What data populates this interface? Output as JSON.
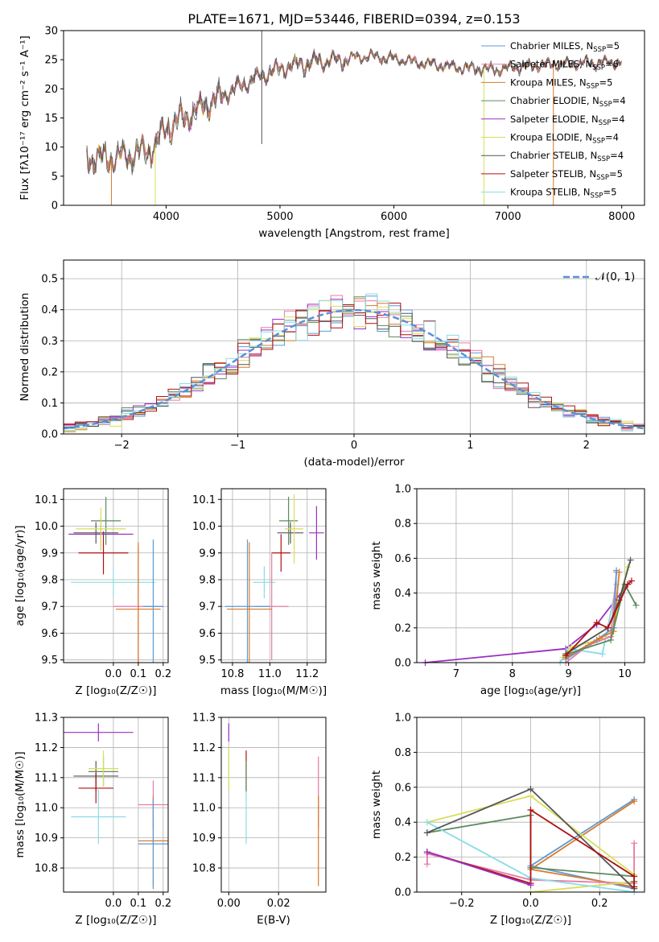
{
  "title": "PLATE=1671, MJD=53446, FIBERID=0394, z=0.153",
  "colors": {
    "chabrier_miles": "#5a9bd4",
    "salpeter_miles": "#e87aa8",
    "kroupa_miles": "#d97a2b",
    "chabrier_elodie": "#5c8a5c",
    "salpeter_elodie": "#9b30c0",
    "kroupa_elodie": "#d8de5a",
    "chabrier_stelib": "#555555",
    "salpeter_stelib": "#b01010",
    "kroupa_stelib": "#8adce6",
    "gaussian": "#5b8fd6"
  },
  "chart_data": [
    {
      "id": "spectrum",
      "type": "line",
      "xlabel": "wavelength [Angstrom, rest frame]",
      "ylabel": "Flux [fλ10⁻¹⁷ erg cm⁻² s⁻¹ A⁻¹]",
      "xlim": [
        3100,
        8200
      ],
      "ylim": [
        0,
        30
      ],
      "xticks": [
        "4000",
        "5000",
        "6000",
        "7000",
        "8000"
      ],
      "yticks": [
        "0",
        "5",
        "10",
        "15",
        "20",
        "25",
        "30"
      ],
      "grid": false,
      "legend_position": "upper right",
      "legend": [
        {
          "name": "Chabrier MILES, N",
          "sub": "SSP",
          "suffix": "=5",
          "color_key": "chabrier_miles"
        },
        {
          "name": "Salpeter MILES, N",
          "sub": "SSP",
          "suffix": "=6",
          "color_key": "salpeter_miles"
        },
        {
          "name": "Kroupa MILES, N",
          "sub": "SSP",
          "suffix": "=5",
          "color_key": "kroupa_miles"
        },
        {
          "name": "Chabrier ELODIE, N",
          "sub": "SSP",
          "suffix": "=4",
          "color_key": "chabrier_elodie"
        },
        {
          "name": "Salpeter ELODIE, N",
          "sub": "SSP",
          "suffix": "=4",
          "color_key": "salpeter_elodie"
        },
        {
          "name": "Kroupa ELODIE, N",
          "sub": "SSP",
          "suffix": "=4",
          "color_key": "kroupa_elodie"
        },
        {
          "name": "Chabrier STELIB, N",
          "sub": "SSP",
          "suffix": "=4",
          "color_key": "chabrier_stelib"
        },
        {
          "name": "Salpeter STELIB, N",
          "sub": "SSP",
          "suffix": "=5",
          "color_key": "salpeter_stelib"
        },
        {
          "name": "Kroupa STELIB, N",
          "sub": "SSP",
          "suffix": "=5",
          "color_key": "kroupa_stelib"
        }
      ],
      "continuum": [
        [
          3300,
          8.3
        ],
        [
          3500,
          8.0
        ],
        [
          3700,
          8.6
        ],
        [
          3900,
          10.0
        ],
        [
          4000,
          13.5
        ],
        [
          4200,
          15.5
        ],
        [
          4500,
          19.0
        ],
        [
          4800,
          22.0
        ],
        [
          5000,
          23.5
        ],
        [
          5200,
          24.3
        ],
        [
          5500,
          25.0
        ],
        [
          5800,
          25.6
        ],
        [
          6000,
          25.2
        ],
        [
          6300,
          24.3
        ],
        [
          6600,
          23.6
        ],
        [
          6900,
          23.3
        ],
        [
          7100,
          23.8
        ],
        [
          7400,
          24.2
        ],
        [
          7700,
          24.4
        ],
        [
          8000,
          24.6
        ]
      ],
      "spikes": [
        {
          "x": 3520,
          "y_min": 0,
          "color_key": "kroupa_miles"
        },
        {
          "x": 3905,
          "y_min": 0,
          "color_key": "kroupa_elodie"
        },
        {
          "x": 4840,
          "y_min": 10.5,
          "y_max": 30,
          "color_key": "chabrier_stelib"
        },
        {
          "x": 6790,
          "y_min": 0,
          "color_key": "kroupa_elodie"
        },
        {
          "x": 7400,
          "y_min": 0,
          "color_key": "kroupa_miles"
        }
      ]
    },
    {
      "id": "residuals",
      "type": "histogram",
      "xlabel": "(data-model)/error",
      "ylabel": "Normed distribution",
      "xlim": [
        -2.5,
        2.5
      ],
      "ylim": [
        0,
        0.56
      ],
      "xticks": [
        "−2",
        "−1",
        "0",
        "1",
        "2"
      ],
      "yticks": [
        "0.0",
        "0.1",
        "0.2",
        "0.3",
        "0.4",
        "0.5"
      ],
      "grid": true,
      "legend_position": "upper right",
      "gaussian_label": "𝒩(0, 1)",
      "bin_width": 0.1
    },
    {
      "id": "age_vs_Z",
      "type": "scatter",
      "xlabel": "Z [log₁₀(Z/Z☉)]",
      "ylabel": "age  [log₁₀(age/yr)]",
      "xlim": [
        -0.2,
        0.22
      ],
      "ylim": [
        9.49,
        10.14
      ],
      "xticks": [
        "0.0",
        "0.1",
        "0.2"
      ],
      "yticks": [
        "9.5",
        "9.6",
        "9.7",
        "9.8",
        "9.9",
        "10.0",
        "10.1"
      ],
      "grid": true,
      "points": [
        {
          "x": 0.0,
          "xerr": 0.17,
          "y": 9.79,
          "yerr": 0.05,
          "color_key": "kroupa_stelib"
        },
        {
          "x": -0.04,
          "xerr": 0.1,
          "y": 9.9,
          "yerr": 0.08,
          "color_key": "salpeter_stelib"
        },
        {
          "x": -0.07,
          "xerr": 0.09,
          "y": 9.975,
          "yerr": 0.04,
          "color_key": "chabrier_stelib"
        },
        {
          "x": -0.03,
          "xerr": 0.06,
          "y": 10.02,
          "yerr": 0.09,
          "color_key": "chabrier_elodie"
        },
        {
          "x": -0.05,
          "xerr": 0.13,
          "y": 9.97,
          "yerr": 0.06,
          "color_key": "salpeter_elodie"
        },
        {
          "x": -0.05,
          "xerr": 0.1,
          "y": 9.99,
          "yerr": 0.08,
          "color_key": "kroupa_elodie"
        },
        {
          "x": 0.1,
          "xerr": 0.1,
          "y": 9.7,
          "yerr": 0.22,
          "color_key": "salpeter_miles"
        },
        {
          "x": 0.16,
          "xerr": 0.04,
          "y": 9.7,
          "yerr": 0.25,
          "color_key": "chabrier_miles"
        },
        {
          "x": 0.1,
          "xerr": 0.09,
          "y": 9.69,
          "yerr": 0.25,
          "color_key": "kroupa_miles"
        }
      ]
    },
    {
      "id": "age_vs_mass",
      "type": "scatter",
      "xlabel": "mass [log₁₀(M/M☉)]",
      "ylabel": "",
      "xlim": [
        10.74,
        11.3
      ],
      "ylim": [
        9.49,
        10.14
      ],
      "xticks": [
        "10.8",
        "11.0",
        "11.2"
      ],
      "yticks": [
        "9.5",
        "9.6",
        "9.7",
        "9.8",
        "9.9",
        "10.0",
        "10.1"
      ],
      "grid": true,
      "points": [
        {
          "x": 10.97,
          "xerr": 0.06,
          "y": 9.79,
          "yerr": 0.06,
          "color_key": "kroupa_stelib"
        },
        {
          "x": 11.06,
          "xerr": 0.05,
          "y": 9.9,
          "yerr": 0.07,
          "color_key": "salpeter_stelib"
        },
        {
          "x": 11.11,
          "xerr": 0.07,
          "y": 9.975,
          "yerr": 0.04,
          "color_key": "chabrier_stelib"
        },
        {
          "x": 11.1,
          "xerr": 0.05,
          "y": 10.02,
          "yerr": 0.09,
          "color_key": "chabrier_elodie"
        },
        {
          "x": 11.25,
          "xerr": 0.04,
          "y": 9.975,
          "yerr": 0.1,
          "color_key": "salpeter_elodie"
        },
        {
          "x": 11.13,
          "xerr": 0.05,
          "y": 9.99,
          "yerr": 0.13,
          "color_key": "kroupa_elodie"
        },
        {
          "x": 11.01,
          "xerr": 0.09,
          "y": 9.7,
          "yerr": 0.2,
          "color_key": "salpeter_miles"
        },
        {
          "x": 10.88,
          "xerr": 0.12,
          "y": 9.7,
          "yerr": 0.25,
          "color_key": "chabrier_miles"
        },
        {
          "x": 10.89,
          "xerr": 0.12,
          "y": 9.69,
          "yerr": 0.25,
          "color_key": "kroupa_miles"
        }
      ]
    },
    {
      "id": "weight_vs_age",
      "type": "line",
      "xlabel": "age  [log₁₀(age/yr)]",
      "ylabel": "mass weight",
      "xlim": [
        6.3,
        10.35
      ],
      "ylim": [
        0,
        1.0
      ],
      "xticks": [
        "7",
        "8",
        "9",
        "10"
      ],
      "yticks": [
        "0.0",
        "0.2",
        "0.4",
        "0.6",
        "0.8",
        "1.0"
      ],
      "grid": true,
      "series": [
        {
          "color_key": "salpeter_elodie",
          "points": [
            [
              6.45,
              0.0
            ],
            [
              8.95,
              0.08
            ],
            [
              9.5,
              0.22
            ],
            [
              10.05,
              0.45
            ]
          ]
        },
        {
          "color_key": "kroupa_stelib",
          "points": [
            [
              8.85,
              0.0
            ],
            [
              9.0,
              0.08
            ],
            [
              9.6,
              0.05
            ],
            [
              9.85,
              0.45
            ]
          ]
        },
        {
          "color_key": "kroupa_elodie",
          "points": [
            [
              8.9,
              0.03
            ],
            [
              9.05,
              0.09
            ],
            [
              9.75,
              0.15
            ],
            [
              10.05,
              0.55
            ]
          ]
        },
        {
          "color_key": "salpeter_miles",
          "points": [
            [
              8.95,
              0.0
            ],
            [
              9.35,
              0.1
            ],
            [
              9.75,
              0.15
            ],
            [
              9.85,
              0.52
            ]
          ]
        },
        {
          "color_key": "chabrier_miles",
          "points": [
            [
              8.95,
              0.02
            ],
            [
              9.5,
              0.13
            ],
            [
              9.8,
              0.2
            ],
            [
              9.85,
              0.53
            ]
          ]
        },
        {
          "color_key": "kroupa_miles",
          "points": [
            [
              8.95,
              0.03
            ],
            [
              9.55,
              0.14
            ],
            [
              9.8,
              0.18
            ],
            [
              9.9,
              0.52
            ]
          ]
        },
        {
          "color_key": "chabrier_elodie",
          "points": [
            [
              8.98,
              0.05
            ],
            [
              9.75,
              0.13
            ],
            [
              10.0,
              0.45
            ],
            [
              10.2,
              0.33
            ]
          ]
        },
        {
          "color_key": "chabrier_stelib",
          "points": [
            [
              8.95,
              0.05
            ],
            [
              9.7,
              0.2
            ],
            [
              9.9,
              0.36
            ],
            [
              10.1,
              0.59
            ]
          ]
        },
        {
          "color_key": "salpeter_stelib",
          "points": [
            [
              8.95,
              0.04
            ],
            [
              9.5,
              0.23
            ],
            [
              9.7,
              0.2
            ],
            [
              10.05,
              0.45
            ],
            [
              10.12,
              0.47
            ]
          ]
        }
      ]
    },
    {
      "id": "mass_vs_Z",
      "type": "scatter",
      "xlabel": "Z [log₁₀(Z/Z☉)]",
      "ylabel": "mass [log₁₀(M/M☉)]",
      "xlim": [
        -0.2,
        0.22
      ],
      "ylim": [
        10.72,
        11.3
      ],
      "xticks": [
        "0.0",
        "0.1",
        "0.2"
      ],
      "yticks": [
        "10.8",
        "10.9",
        "11.0",
        "11.1",
        "11.2",
        "11.3"
      ],
      "grid": true,
      "points": [
        {
          "x": -0.06,
          "xerr": 0.14,
          "y": 11.25,
          "yerr": 0.03,
          "color_key": "salpeter_elodie"
        },
        {
          "x": -0.07,
          "xerr": 0.09,
          "y": 11.105,
          "yerr": 0.05,
          "color_key": "chabrier_stelib"
        },
        {
          "x": -0.04,
          "xerr": 0.06,
          "y": 11.12,
          "yerr": 0.05,
          "color_key": "chabrier_elodie"
        },
        {
          "x": -0.04,
          "xerr": 0.06,
          "y": 11.13,
          "yerr": 0.06,
          "color_key": "kroupa_elodie"
        },
        {
          "x": -0.07,
          "xerr": 0.07,
          "y": 11.065,
          "yerr": 0.05,
          "color_key": "salpeter_stelib"
        },
        {
          "x": -0.06,
          "xerr": 0.11,
          "y": 10.97,
          "yerr": 0.09,
          "color_key": "kroupa_stelib"
        },
        {
          "x": 0.16,
          "xerr": 0.06,
          "y": 11.01,
          "yerr": 0.08,
          "color_key": "salpeter_miles"
        },
        {
          "x": 0.16,
          "xerr": 0.06,
          "y": 10.89,
          "yerr": 0.15,
          "color_key": "kroupa_miles"
        },
        {
          "x": 0.16,
          "xerr": 0.06,
          "y": 10.88,
          "yerr": 0.15,
          "color_key": "chabrier_miles"
        }
      ]
    },
    {
      "id": "mass_vs_ebv",
      "type": "scatter",
      "xlabel": "E(B-V)",
      "ylabel": "",
      "xlim": [
        -0.003,
        0.039
      ],
      "ylim": [
        10.72,
        11.3
      ],
      "xticks": [
        "0.00",
        "0.02"
      ],
      "yticks": [
        "10.8",
        "10.9",
        "11.0",
        "11.1",
        "11.2",
        "11.3"
      ],
      "grid": true,
      "points": [
        {
          "x": 0.0,
          "xerr": 0,
          "y": 11.25,
          "yerr": 0.03,
          "color_key": "salpeter_elodie"
        },
        {
          "x": 0.0,
          "xerr": 0,
          "y": 11.13,
          "yerr": 0.07,
          "color_key": "kroupa_elodie"
        },
        {
          "x": 0.007,
          "xerr": 0,
          "y": 11.12,
          "yerr": 0.07,
          "color_key": "salpeter_stelib"
        },
        {
          "x": 0.007,
          "xerr": 0,
          "y": 10.97,
          "yerr": 0.09,
          "color_key": "kroupa_stelib"
        },
        {
          "x": 0.007,
          "xerr": 0,
          "y": 11.105,
          "yerr": 0.05,
          "color_key": "chabrier_elodie"
        },
        {
          "x": 0.036,
          "xerr": 0,
          "y": 11.05,
          "yerr": 0.12,
          "color_key": "salpeter_miles"
        },
        {
          "x": 0.036,
          "xerr": 0,
          "y": 10.89,
          "yerr": 0.15,
          "color_key": "kroupa_miles"
        }
      ]
    },
    {
      "id": "weight_vs_Z",
      "type": "line",
      "xlabel": "Z [log₁₀(Z/Z☉)]",
      "ylabel": "mass weight",
      "xlim": [
        -0.33,
        0.33
      ],
      "ylim": [
        0,
        1.0
      ],
      "xticks": [
        "−0.2",
        "0.0",
        "0.2"
      ],
      "yticks": [
        "0.0",
        "0.2",
        "0.4",
        "0.6",
        "0.8",
        "1.0"
      ],
      "grid": true,
      "series": [
        {
          "color_key": "chabrier_miles",
          "points": [
            [
              0.3,
              0.02
            ],
            [
              0.0,
              0.15
            ],
            [
              0.3,
              0.53
            ]
          ]
        },
        {
          "color_key": "kroupa_miles",
          "points": [
            [
              0.3,
              0.03
            ],
            [
              0.0,
              0.13
            ],
            [
              0.3,
              0.52
            ]
          ]
        },
        {
          "color_key": "salpeter_miles",
          "points": [
            [
              -0.3,
              0.16
            ],
            [
              -0.3,
              0.22
            ],
            [
              0.0,
              0.07
            ],
            [
              0.3,
              0.05
            ],
            [
              0.3,
              0.28
            ]
          ]
        },
        {
          "color_key": "kroupa_elodie",
          "points": [
            [
              -0.3,
              0.4
            ],
            [
              0.0,
              0.55
            ],
            [
              0.3,
              0.1
            ],
            [
              0.3,
              0.06
            ],
            [
              0.0,
              0.0
            ],
            [
              0.3,
              0.06
            ]
          ]
        },
        {
          "color_key": "chabrier_elodie",
          "points": [
            [
              -0.3,
              0.34
            ],
            [
              0.0,
              0.44
            ],
            [
              0.0,
              0.14
            ],
            [
              0.3,
              0.09
            ]
          ]
        },
        {
          "color_key": "kroupa_stelib",
          "points": [
            [
              -0.3,
              0.4
            ],
            [
              0.0,
              0.08
            ],
            [
              0.3,
              0.0
            ]
          ]
        },
        {
          "color_key": "chabrier_stelib",
          "points": [
            [
              -0.3,
              0.34
            ],
            [
              0.0,
              0.59
            ],
            [
              0.3,
              0.02
            ],
            [
              0.3,
              0.06
            ]
          ]
        },
        {
          "color_key": "salpeter_stelib",
          "points": [
            [
              -0.3,
              0.23
            ],
            [
              0.0,
              0.05
            ],
            [
              0.0,
              0.47
            ],
            [
              0.3,
              0.09
            ],
            [
              0.3,
              0.03
            ]
          ]
        },
        {
          "color_key": "salpeter_elodie",
          "points": [
            [
              -0.3,
              0.23
            ],
            [
              0.0,
              0.04
            ]
          ]
        }
      ]
    }
  ]
}
